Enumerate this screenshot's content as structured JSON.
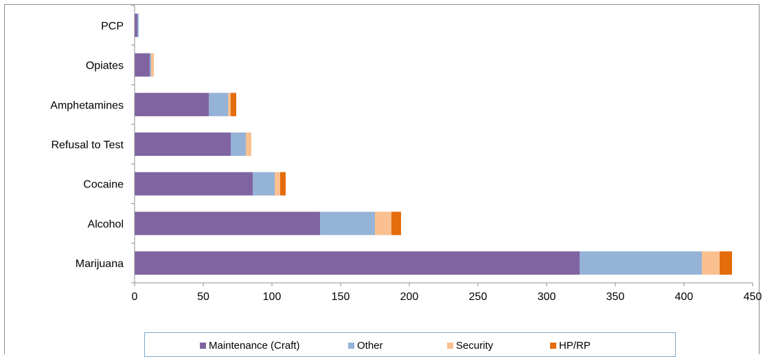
{
  "chart_data": {
    "type": "bar",
    "orientation": "horizontal",
    "stacked": true,
    "categories": [
      "PCP",
      "Opiates",
      "Amphetamines",
      "Refusal to Test",
      "Cocaine",
      "Alcohol",
      "Marijuana"
    ],
    "series": [
      {
        "name": "Maintenance (Craft)",
        "color": "#8064a2",
        "values": [
          2,
          11,
          54,
          70,
          86,
          135,
          324
        ]
      },
      {
        "name": "Other",
        "color": "#95b3d7",
        "values": [
          1,
          1,
          14,
          11,
          16,
          40,
          89
        ]
      },
      {
        "name": "Security",
        "color": "#fac090",
        "values": [
          0,
          2,
          2,
          4,
          4,
          12,
          13
        ]
      },
      {
        "name": "HP/RP",
        "color": "#e46c0a",
        "values": [
          0,
          0,
          4,
          0,
          4,
          7,
          9
        ]
      }
    ],
    "xlim": [
      0,
      450
    ],
    "xticks": [
      "0",
      "50",
      "100",
      "150",
      "200",
      "250",
      "300",
      "350",
      "400",
      "450"
    ],
    "grid": false,
    "legend_position": "bottom"
  }
}
